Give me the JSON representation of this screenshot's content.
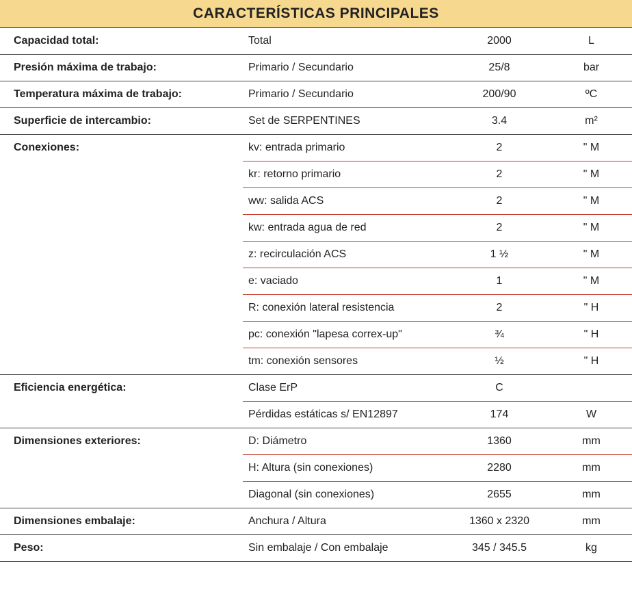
{
  "title": "CARACTERÍSTICAS PRINCIPALES",
  "colors": {
    "header_bg": "#f7d88f",
    "text": "#222222",
    "group_divider": "#444444",
    "sub_divider": "#c43b2f",
    "background": "#ffffff"
  },
  "groups": [
    {
      "label": "Capacidad total:",
      "rows": [
        {
          "desc": "Total",
          "value": "2000",
          "unit": "L"
        }
      ]
    },
    {
      "label": "Presión máxima de trabajo:",
      "rows": [
        {
          "desc": "Primario / Secundario",
          "value": "25/8",
          "unit": "bar"
        }
      ]
    },
    {
      "label": "Temperatura máxima de trabajo:",
      "rows": [
        {
          "desc": "Primario / Secundario",
          "value": "200/90",
          "unit": "ºC"
        }
      ]
    },
    {
      "label": "Superficie de intercambio:",
      "rows": [
        {
          "desc": "Set de SERPENTINES",
          "value": "3.4",
          "unit": "m²"
        }
      ]
    },
    {
      "label": "Conexiones:",
      "rows": [
        {
          "desc": "kv: entrada primario",
          "value": "2",
          "unit": "\" M"
        },
        {
          "desc": "kr: retorno primario",
          "value": "2",
          "unit": "\" M"
        },
        {
          "desc": "ww: salida ACS",
          "value": "2",
          "unit": "\" M"
        },
        {
          "desc": "kw: entrada agua de red",
          "value": "2",
          "unit": "\" M"
        },
        {
          "desc": "z: recirculación ACS",
          "value": "1 ½",
          "unit": "\" M"
        },
        {
          "desc": "e: vaciado",
          "value": "1",
          "unit": "\" M"
        },
        {
          "desc": "R: conexión lateral resistencia",
          "value": "2",
          "unit": "\" H"
        },
        {
          "desc": "pc: conexión \"lapesa correx-up\"",
          "value": "¾",
          "unit": "\" H"
        },
        {
          "desc": "tm: conexión sensores",
          "value": "½",
          "unit": "\" H"
        }
      ]
    },
    {
      "label": "Eficiencia energética:",
      "rows": [
        {
          "desc": "Clase ErP",
          "value": "C",
          "unit": ""
        },
        {
          "desc": "Pérdidas estáticas s/ EN12897",
          "value": "174",
          "unit": "W"
        }
      ]
    },
    {
      "label": "Dimensiones exteriores:",
      "rows": [
        {
          "desc": "D: Diámetro",
          "value": "1360",
          "unit": "mm"
        },
        {
          "desc": "H: Altura (sin conexiones)",
          "value": "2280",
          "unit": "mm"
        },
        {
          "desc": "Diagonal (sin conexiones)",
          "value": "2655",
          "unit": "mm"
        }
      ]
    },
    {
      "label": "Dimensiones embalaje:",
      "rows": [
        {
          "desc": "Anchura / Altura",
          "value": "1360 x 2320",
          "unit": "mm"
        }
      ]
    },
    {
      "label": "Peso:",
      "rows": [
        {
          "desc": "Sin embalaje / Con embalaje",
          "value": "345 / 345.5",
          "unit": "kg"
        }
      ]
    }
  ]
}
